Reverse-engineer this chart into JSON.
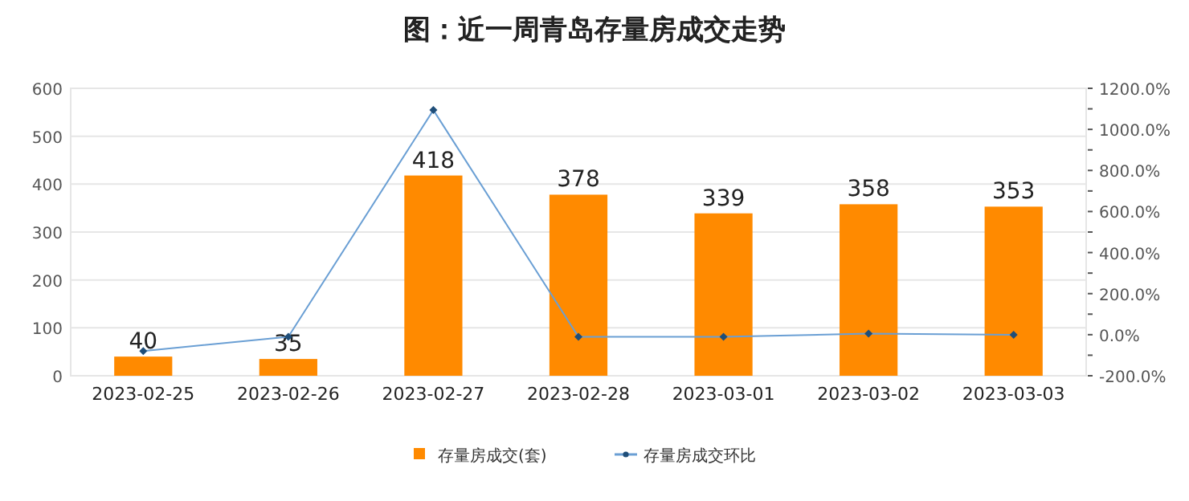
{
  "chart_data": {
    "type": "bar",
    "title": "图：近一周青岛存量房成交走势",
    "categories": [
      "2023-02-25",
      "2023-02-26",
      "2023-02-27",
      "2023-02-28",
      "2023-03-01",
      "2023-03-02",
      "2023-03-03"
    ],
    "series": [
      {
        "name": "存量房成交(套)",
        "color": "#ff8a00",
        "values": [
          40,
          35,
          418,
          378,
          339,
          358,
          353
        ],
        "value_labels": [
          "40",
          "35",
          "418",
          "378",
          "339",
          "358",
          "353"
        ]
      },
      {
        "name": "存量房成交环比",
        "type": "line",
        "axis": "y2",
        "color": "#6a9fd4",
        "values": [
          -80,
          -10,
          1094,
          -10,
          -10,
          5,
          -1
        ]
      }
    ],
    "ylim": [
      0,
      600
    ],
    "yticks": [
      0,
      100,
      200,
      300,
      400,
      500,
      600
    ],
    "y2lim": [
      -200,
      1200
    ],
    "y2ticks": [
      {
        "value": -200,
        "label": "-200.0%"
      },
      {
        "value": -100,
        "label": null
      },
      {
        "value": 0,
        "label": "0.0%"
      },
      {
        "value": 100,
        "label": null
      },
      {
        "value": 200,
        "label": "200.0%"
      },
      {
        "value": 300,
        "label": null
      },
      {
        "value": 400,
        "label": "400.0%"
      },
      {
        "value": 500,
        "label": null
      },
      {
        "value": 600,
        "label": "600.0%"
      },
      {
        "value": 700,
        "label": null
      },
      {
        "value": 800,
        "label": "800.0%"
      },
      {
        "value": 900,
        "label": null
      },
      {
        "value": 1000,
        "label": "1000.0%"
      },
      {
        "value": 1100,
        "label": null
      },
      {
        "value": 1200,
        "label": "1200.0%"
      }
    ],
    "grid": "y",
    "legend": "bottom",
    "marker": "diamond"
  }
}
